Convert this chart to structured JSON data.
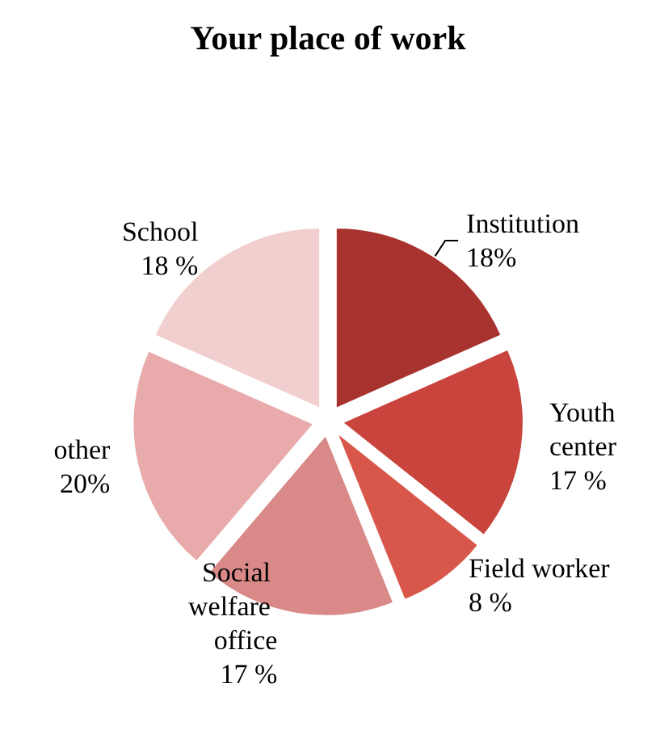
{
  "chart_data": {
    "type": "pie",
    "title": "Your place of work",
    "categories": [
      "Institution",
      "Youth center",
      "Field worker",
      "Social welfare office",
      "other",
      "School"
    ],
    "values": [
      18,
      17,
      8,
      17,
      20,
      18
    ],
    "value_labels": [
      "18%",
      "17 %",
      "8 %",
      "17 %",
      "20%",
      "18 %"
    ],
    "colors": [
      "#a8322e",
      "#c8443c",
      "#d9574a",
      "#d98a88",
      "#e8aaaa",
      "#f2cfcf"
    ],
    "legend": false
  }
}
